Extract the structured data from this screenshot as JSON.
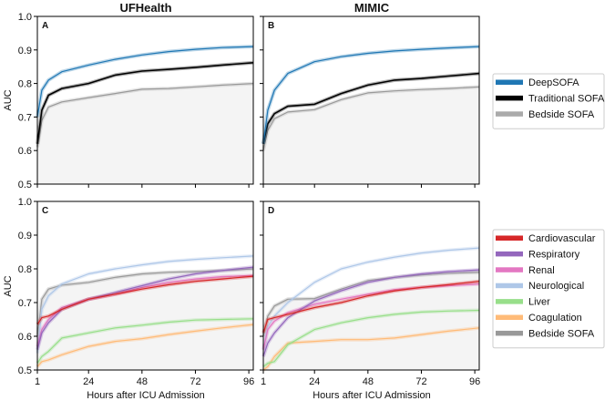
{
  "chart_data": {
    "type": "line",
    "column_titles": [
      "UFHealth",
      "MIMIC"
    ],
    "xlabel": "Hours after ICU Admission",
    "ylabel": "AUC",
    "xlim": [
      1,
      98
    ],
    "ylim": [
      0.5,
      1.0
    ],
    "xticks": [
      1,
      24,
      48,
      72,
      96
    ],
    "yticks": [
      "0.5",
      "0.6",
      "0.7",
      "0.8",
      "0.9",
      "1.0"
    ],
    "x": [
      1,
      3,
      6,
      12,
      24,
      36,
      48,
      60,
      72,
      84,
      98
    ],
    "legends": [
      {
        "entries": [
          {
            "name": "DeepSOFA",
            "color": "#1f77b4"
          },
          {
            "name": "Traditional SOFA",
            "color": "#000000"
          },
          {
            "name": "Bedside SOFA",
            "color": "#aaaaaa"
          }
        ]
      },
      {
        "entries": [
          {
            "name": "Cardiovascular",
            "color": "#d62728"
          },
          {
            "name": "Respiratory",
            "color": "#9467bd"
          },
          {
            "name": "Renal",
            "color": "#e377c2"
          },
          {
            "name": "Neurological",
            "color": "#aec7e8"
          },
          {
            "name": "Liver",
            "color": "#98df8a"
          },
          {
            "name": "Coagulation",
            "color": "#ffbb78"
          },
          {
            "name": "Bedside SOFA",
            "color": "#999999"
          }
        ]
      }
    ],
    "panels": [
      {
        "label": "A",
        "legend": 0,
        "series": [
          {
            "name": "Bedside SOFA",
            "values": [
              0.61,
              0.69,
              0.73,
              0.745,
              0.758,
              0.77,
              0.783,
              0.785,
              0.79,
              0.795,
              0.8
            ]
          },
          {
            "name": "Traditional SOFA",
            "values": [
              0.62,
              0.72,
              0.765,
              0.785,
              0.8,
              0.825,
              0.837,
              0.842,
              0.848,
              0.855,
              0.862
            ]
          },
          {
            "name": "DeepSOFA",
            "values": [
              0.7,
              0.78,
              0.81,
              0.835,
              0.855,
              0.872,
              0.885,
              0.895,
              0.902,
              0.907,
              0.91
            ]
          }
        ]
      },
      {
        "label": "B",
        "legend": 0,
        "series": [
          {
            "name": "Bedside SOFA",
            "values": [
              0.6,
              0.66,
              0.695,
              0.715,
              0.722,
              0.752,
              0.772,
              0.778,
              0.782,
              0.785,
              0.79
            ]
          },
          {
            "name": "Traditional SOFA",
            "values": [
              0.62,
              0.68,
              0.71,
              0.732,
              0.738,
              0.77,
              0.795,
              0.81,
              0.815,
              0.822,
              0.83
            ]
          },
          {
            "name": "DeepSOFA",
            "values": [
              0.62,
              0.72,
              0.78,
              0.83,
              0.865,
              0.88,
              0.89,
              0.897,
              0.902,
              0.906,
              0.91
            ]
          }
        ]
      },
      {
        "label": "C",
        "legend": 1,
        "series": [
          {
            "name": "Bedside SOFA",
            "values": [
              0.6,
              0.71,
              0.74,
              0.752,
              0.76,
              0.775,
              0.785,
              0.79,
              0.792,
              0.795,
              0.8
            ]
          },
          {
            "name": "Coagulation",
            "values": [
              0.51,
              0.525,
              0.53,
              0.545,
              0.57,
              0.585,
              0.593,
              0.605,
              0.615,
              0.625,
              0.635
            ]
          },
          {
            "name": "Liver",
            "values": [
              0.52,
              0.54,
              0.555,
              0.595,
              0.61,
              0.625,
              0.633,
              0.642,
              0.648,
              0.65,
              0.652
            ]
          },
          {
            "name": "Neurological",
            "values": [
              0.55,
              0.68,
              0.72,
              0.755,
              0.785,
              0.8,
              0.812,
              0.822,
              0.828,
              0.833,
              0.838
            ]
          },
          {
            "name": "Renal",
            "values": [
              0.57,
              0.62,
              0.65,
              0.685,
              0.71,
              0.725,
              0.745,
              0.76,
              0.77,
              0.777,
              0.78
            ]
          },
          {
            "name": "Respiratory",
            "values": [
              0.56,
              0.61,
              0.64,
              0.68,
              0.71,
              0.73,
              0.75,
              0.77,
              0.785,
              0.795,
              0.805
            ]
          },
          {
            "name": "Cardiovascular",
            "values": [
              0.635,
              0.655,
              0.66,
              0.68,
              0.71,
              0.725,
              0.74,
              0.753,
              0.763,
              0.77,
              0.778
            ]
          }
        ]
      },
      {
        "label": "D",
        "legend": 1,
        "series": [
          {
            "name": "Bedside SOFA",
            "values": [
              0.6,
              0.66,
              0.69,
              0.71,
              0.712,
              0.74,
              0.765,
              0.775,
              0.782,
              0.787,
              0.79
            ]
          },
          {
            "name": "Coagulation",
            "values": [
              0.5,
              0.51,
              0.54,
              0.58,
              0.585,
              0.59,
              0.59,
              0.595,
              0.605,
              0.615,
              0.625
            ]
          },
          {
            "name": "Liver",
            "values": [
              0.51,
              0.52,
              0.525,
              0.575,
              0.62,
              0.64,
              0.655,
              0.665,
              0.672,
              0.675,
              0.677
            ]
          },
          {
            "name": "Neurological",
            "values": [
              0.56,
              0.63,
              0.66,
              0.7,
              0.76,
              0.8,
              0.82,
              0.835,
              0.847,
              0.855,
              0.862
            ]
          },
          {
            "name": "Renal",
            "values": [
              0.56,
              0.62,
              0.645,
              0.67,
              0.695,
              0.71,
              0.725,
              0.738,
              0.745,
              0.75,
              0.755
            ]
          },
          {
            "name": "Respiratory",
            "values": [
              0.54,
              0.58,
              0.61,
              0.655,
              0.705,
              0.735,
              0.76,
              0.775,
              0.785,
              0.792,
              0.797
            ]
          },
          {
            "name": "Cardiovascular",
            "values": [
              0.61,
              0.65,
              0.655,
              0.665,
              0.685,
              0.7,
              0.72,
              0.735,
              0.745,
              0.753,
              0.763
            ]
          }
        ]
      }
    ]
  }
}
